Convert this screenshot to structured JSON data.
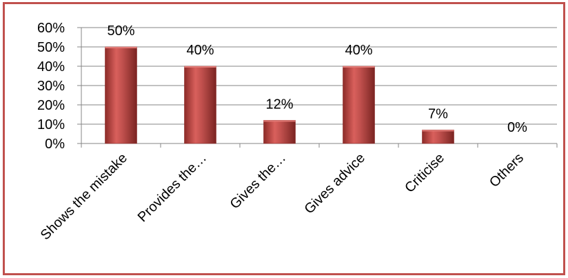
{
  "chart_data": {
    "type": "bar",
    "categories": [
      "Shows the mistake",
      "Provides the…",
      "Gives the…",
      "Gives advice",
      "Criticise",
      "Others"
    ],
    "values": [
      50,
      40,
      12,
      40,
      7,
      0
    ],
    "data_labels": [
      "50%",
      "40%",
      "12%",
      "40%",
      "7%",
      "0%"
    ],
    "ylim": [
      0,
      60
    ],
    "yticks": [
      0,
      10,
      20,
      30,
      40,
      50,
      60
    ],
    "ytick_labels": [
      "0%",
      "10%",
      "20%",
      "30%",
      "40%",
      "50%",
      "60%"
    ],
    "grid": true,
    "legend": "none",
    "title": "",
    "xlabel": "",
    "ylabel": ""
  },
  "colors": {
    "bar_fill": "#c0504d",
    "bar_dark": "#8c2b28",
    "frame_border": "#c0504d",
    "grid": "#868686"
  }
}
